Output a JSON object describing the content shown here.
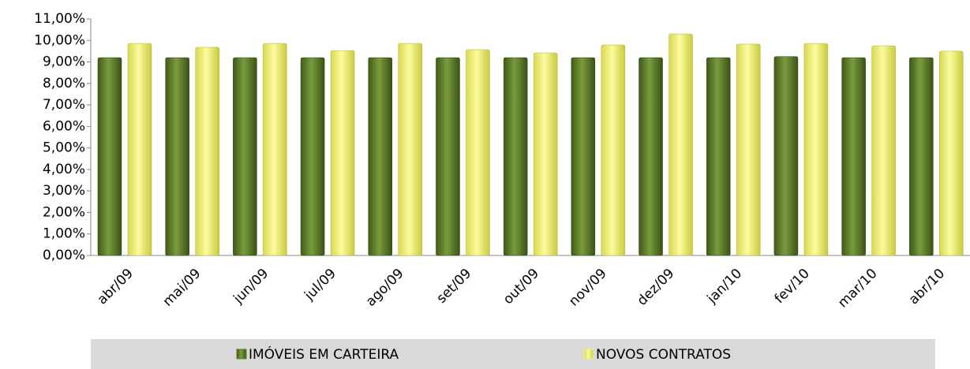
{
  "chart_data": {
    "type": "bar",
    "categories": [
      "abr/09",
      "mai/09",
      "jun/09",
      "jul/09",
      "ago/09",
      "set/09",
      "out/09",
      "nov/09",
      "dez/09",
      "jan/10",
      "fev/10",
      "mar/10",
      "abr/10"
    ],
    "series": [
      {
        "name": "IMÓVEIS EM CARTEIRA",
        "color": "#5f7f2c",
        "values": [
          9.2,
          9.2,
          9.2,
          9.2,
          9.2,
          9.2,
          9.2,
          9.2,
          9.2,
          9.2,
          9.25,
          9.2,
          9.2
        ]
      },
      {
        "name": "NOVOS CONTRATOS",
        "color": "#f2f27a",
        "values": [
          9.86,
          9.68,
          9.86,
          9.53,
          9.86,
          9.57,
          9.42,
          9.79,
          10.3,
          9.83,
          9.86,
          9.75,
          9.5
        ]
      }
    ],
    "ylim": [
      0,
      11
    ],
    "yticks": [
      {
        "value": 0,
        "label": "0,00%"
      },
      {
        "value": 1,
        "label": "1,00%"
      },
      {
        "value": 2,
        "label": "2,00%"
      },
      {
        "value": 3,
        "label": "3,00%"
      },
      {
        "value": 4,
        "label": "4,00%"
      },
      {
        "value": 5,
        "label": "5,00%"
      },
      {
        "value": 6,
        "label": "6,00%"
      },
      {
        "value": 7,
        "label": "7,00%"
      },
      {
        "value": 8,
        "label": "8,00%"
      },
      {
        "value": 9,
        "label": "9,00%"
      },
      {
        "value": 10,
        "label": "10,00%"
      },
      {
        "value": 11,
        "label": "11,00%"
      }
    ],
    "grid": false,
    "legend": "bottom"
  }
}
